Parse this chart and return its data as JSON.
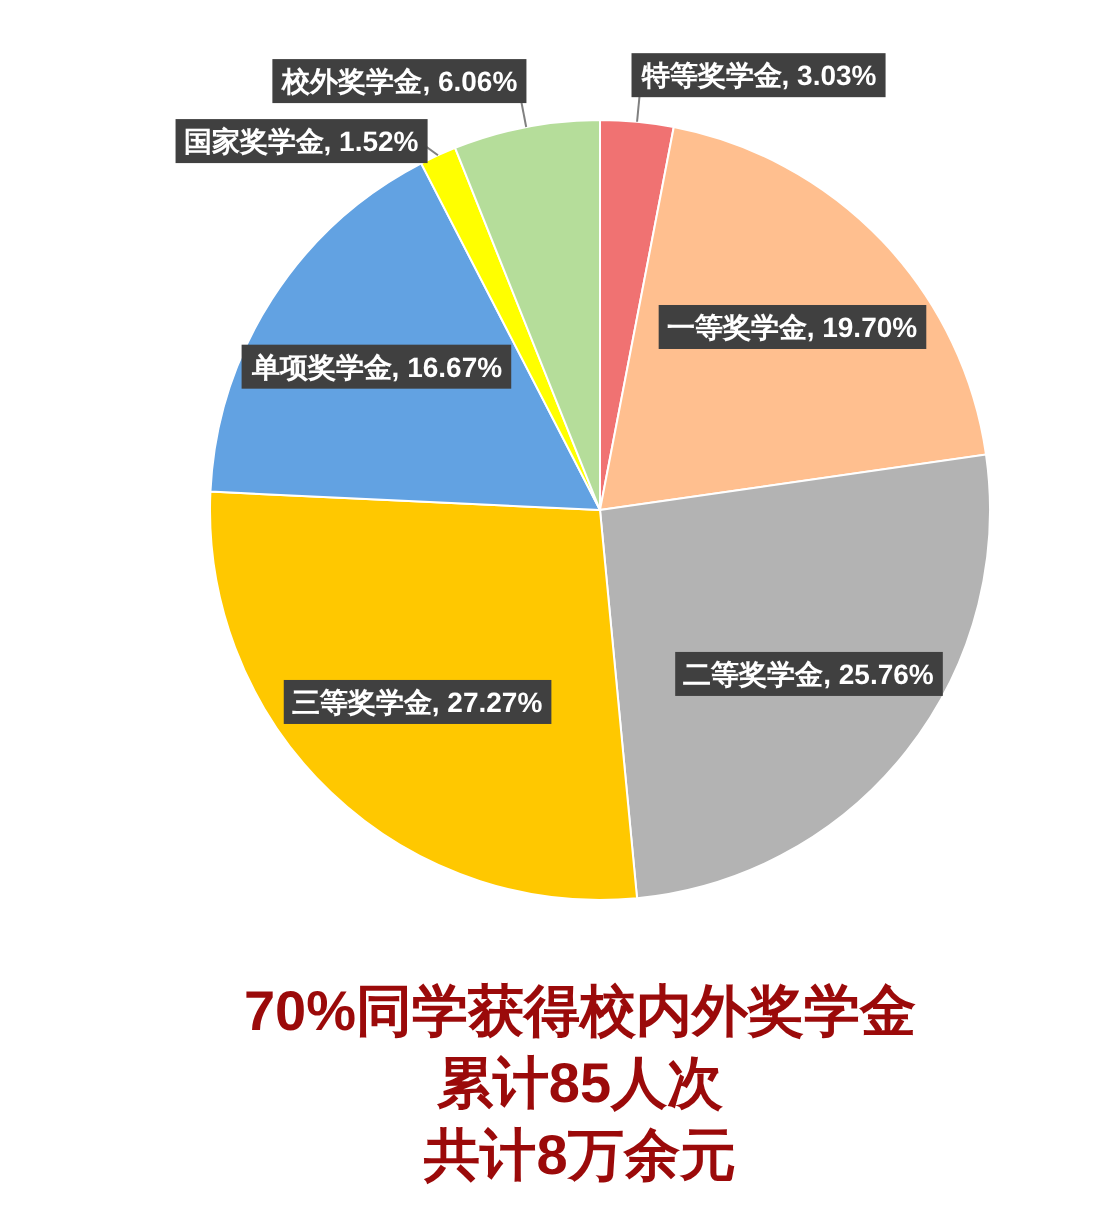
{
  "chart_data": {
    "type": "pie",
    "categories": [
      "特等奖学金",
      "一等奖学金",
      "二等奖学金",
      "三等奖学金",
      "单项奖学金",
      "国家奖学金",
      "校外奖学金"
    ],
    "values": [
      3.03,
      19.7,
      25.76,
      27.27,
      16.67,
      1.52,
      6.06
    ],
    "colors": [
      "#f07272",
      "#ffbf8f",
      "#b3b3b3",
      "#ffc800",
      "#62a2e2",
      "#ffff00",
      "#b5dd9a"
    ],
    "value_labels": [
      "3.03%",
      "19.70%",
      "25.76%",
      "27.27%",
      "16.67%",
      "1.52%",
      "6.06%"
    ],
    "annotations": [
      "70%同学获得校内外奖学金",
      "累计85人次",
      "共计8万余元"
    ]
  }
}
